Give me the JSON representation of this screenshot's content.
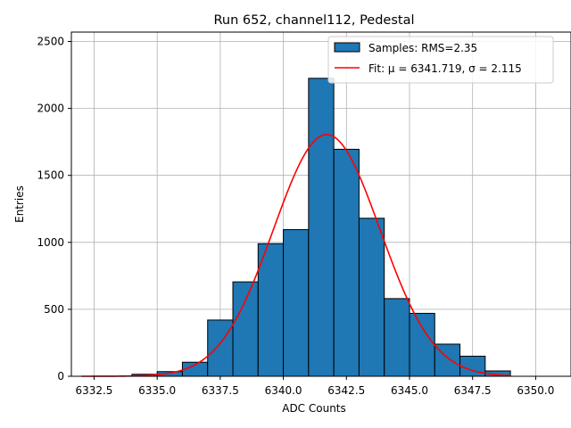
{
  "chart_data": {
    "type": "bar",
    "title": "Run 652, channel112, Pedestal",
    "xlabel": "ADC Counts",
    "ylabel": "Entries",
    "xlim": [
      6331.6,
      6351.4
    ],
    "ylim": [
      0,
      2570
    ],
    "xticks": [
      6332.5,
      6335.0,
      6337.5,
      6340.0,
      6342.5,
      6345.0,
      6347.5,
      6350.0
    ],
    "yticks": [
      0,
      500,
      1000,
      1500,
      2000,
      2500
    ],
    "grid": true,
    "legend_position": "top-right",
    "histogram": {
      "name": "Samples: RMS=2.35",
      "color": "#1f77b4",
      "bin_edges": [
        6332,
        6333,
        6334,
        6335,
        6336,
        6337,
        6338,
        6339,
        6340,
        6341,
        6342,
        6343,
        6344,
        6345,
        6346,
        6347,
        6348,
        6349,
        6350,
        6351
      ],
      "counts": [
        0,
        0,
        15,
        35,
        105,
        420,
        705,
        990,
        1095,
        2225,
        1695,
        1180,
        580,
        470,
        240,
        150,
        40,
        0,
        0
      ]
    },
    "fit": {
      "name": "Fit: μ = 6341.719, σ = 2.115",
      "color": "#ff0000",
      "mu": 6341.719,
      "sigma": 2.115,
      "amplitude": 1805,
      "x_range": [
        6332,
        6349
      ]
    }
  }
}
